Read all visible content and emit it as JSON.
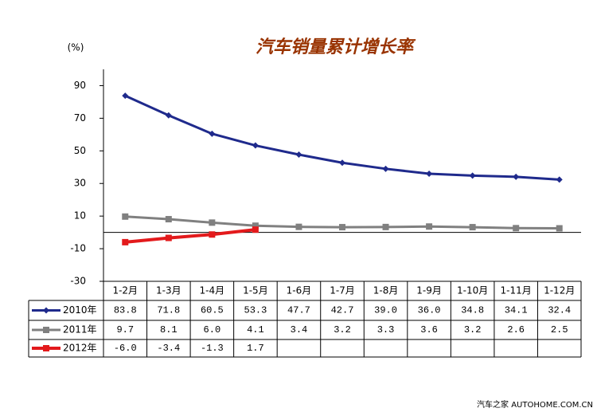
{
  "chart_data": {
    "type": "line",
    "title": "汽车销量累计增长率",
    "y_unit_label": "(%)",
    "categories": [
      "1-2月",
      "1-3月",
      "1-4月",
      "1-5月",
      "1-6月",
      "1-7月",
      "1-8月",
      "1-9月",
      "1-10月",
      "1-11月",
      "1-12月"
    ],
    "series": [
      {
        "name": "2010年",
        "color": "#1f2a8c",
        "marker": "diamond",
        "values": [
          83.8,
          71.8,
          60.5,
          53.3,
          47.7,
          42.7,
          39.0,
          36.0,
          34.8,
          34.1,
          32.4
        ],
        "value_labels": [
          "83.8",
          "71.8",
          "60.5",
          "53.3",
          "47.7",
          "42.7",
          "39.0",
          "36.0",
          "34.8",
          "34.1",
          "32.4"
        ]
      },
      {
        "name": "2011年",
        "color": "#808080",
        "marker": "square",
        "values": [
          9.7,
          8.1,
          6.0,
          4.1,
          3.4,
          3.2,
          3.3,
          3.6,
          3.2,
          2.6,
          2.5
        ],
        "value_labels": [
          "9.7",
          "8.1",
          "6.0",
          "4.1",
          "3.4",
          "3.2",
          "3.3",
          "3.6",
          "3.2",
          "2.6",
          "2.5"
        ]
      },
      {
        "name": "2012年",
        "color": "#e31a1c",
        "marker": "square",
        "values": [
          -6.0,
          -3.4,
          -1.3,
          1.7,
          null,
          null,
          null,
          null,
          null,
          null,
          null
        ],
        "value_labels": [
          "-6.0",
          "-3.4",
          "-1.3",
          "1.7",
          null,
          null,
          null,
          null,
          null,
          null,
          null
        ]
      }
    ],
    "ylim": [
      -30,
      100
    ],
    "yticks": [
      -30,
      -10,
      10,
      30,
      50,
      70,
      90
    ],
    "grid": false,
    "source": "汽车之家 AUTOHOME.COM.CN"
  }
}
